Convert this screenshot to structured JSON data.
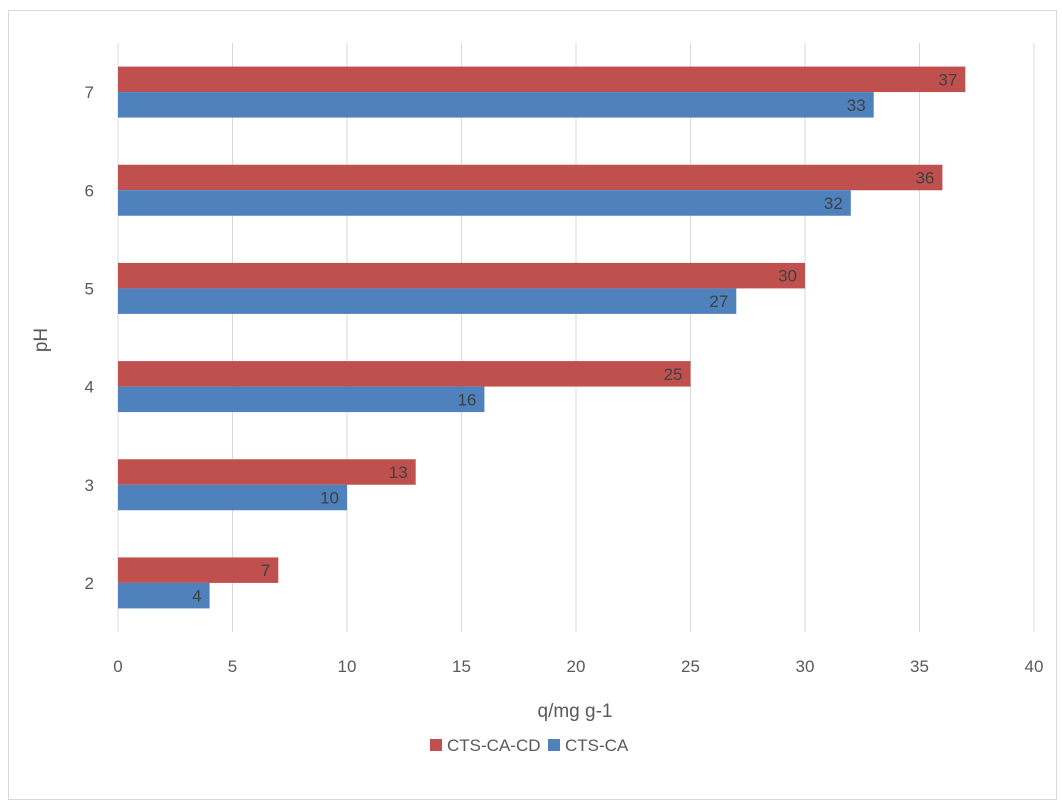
{
  "chart_data": {
    "type": "bar",
    "orientation": "horizontal",
    "categories": [
      "2",
      "3",
      "4",
      "5",
      "6",
      "7"
    ],
    "series": [
      {
        "name": "CTS-CA-CD",
        "values": [
          7,
          13,
          25,
          30,
          36,
          37
        ],
        "color": "#c0504d"
      },
      {
        "name": "CTS-CA",
        "values": [
          4,
          10,
          16,
          27,
          32,
          33
        ],
        "color": "#4f81bd"
      }
    ],
    "xlabel": "q/mg g-1",
    "ylabel": "pH",
    "xlim": [
      0,
      40
    ],
    "xticks": [
      0,
      5,
      10,
      15,
      20,
      25,
      30,
      35,
      40
    ],
    "grid": "vertical",
    "data_labels": true,
    "legend": "bottom"
  }
}
